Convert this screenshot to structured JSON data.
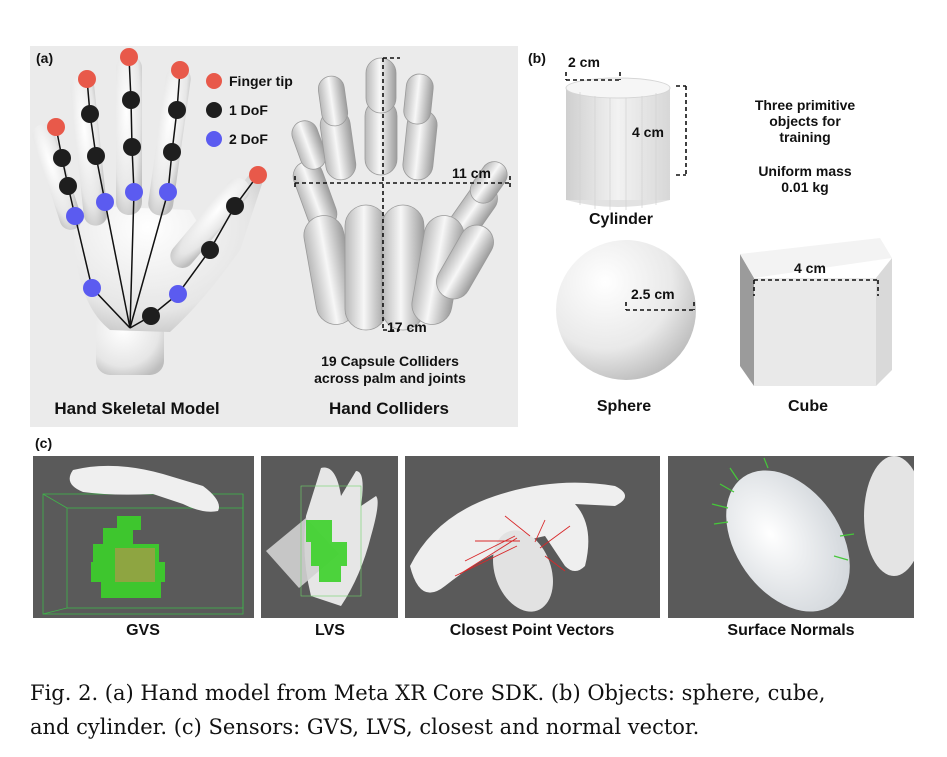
{
  "panel_a": {
    "tag": "(a)",
    "legend": [
      {
        "label": "Finger tip",
        "color": "#e8594a"
      },
      {
        "label": "1 DoF",
        "color": "#1e1e1e"
      },
      {
        "label": "2 DoF",
        "color": "#5b5bf0"
      }
    ],
    "skeleton_title": "Hand Skeletal Model",
    "colliders_title": "Hand Colliders",
    "width_label": "11 cm",
    "length_label": "17 cm",
    "colliders_caption_line1": "19 Capsule Colliders",
    "colliders_caption_line2": "across palm and joints"
  },
  "panel_b": {
    "tag": "(b)",
    "cylinder_diameter": "2 cm",
    "cylinder_height": "4 cm",
    "cylinder_label": "Cylinder",
    "info_line1": "Three primitive",
    "info_line2": "objects for",
    "info_line3": "training",
    "mass_line1": "Uniform mass",
    "mass_line2": "0.01 kg",
    "sphere_radius": "2.5 cm",
    "sphere_label": "Sphere",
    "cube_size": "4 cm",
    "cube_label": "Cube"
  },
  "panel_c": {
    "tag": "(c)",
    "labels": [
      "GVS",
      "LVS",
      "Closest Point Vectors",
      "Surface Normals"
    ]
  },
  "caption": {
    "line1": "Fig. 2.  (a) Hand model from Meta XR Core SDK. (b) Objects: sphere, cube,",
    "line2": "and cylinder. (c) Sensors: GVS, LVS, closest and normal vector."
  },
  "colors": {
    "panel_bg": "#ebebeb",
    "render_bg": "#5a5a5a",
    "fingertip": "#e8594a",
    "one_dof": "#1e1e1e",
    "two_dof": "#5b5bf0",
    "voxel_green": "#3cd22a",
    "vector_red": "#d8282a",
    "normal_green": "#46c83a"
  }
}
